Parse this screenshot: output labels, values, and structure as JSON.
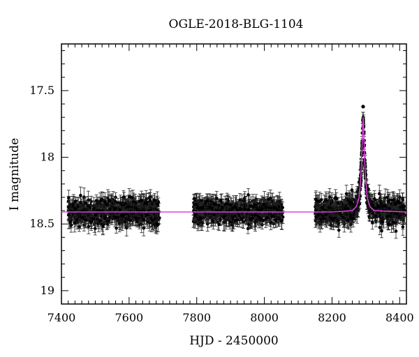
{
  "chart_data": {
    "type": "scatter",
    "title": "OGLE-2018-BLG-1104",
    "xlabel": "HJD - 2450000",
    "ylabel": "I magnitude",
    "xlim": [
      7400,
      8420
    ],
    "ylim": [
      19.1,
      17.15
    ],
    "y_inverted": true,
    "x_ticks": [
      7400,
      7600,
      7800,
      8000,
      8200,
      8400
    ],
    "x_tick_labels": [
      "7400",
      "7600",
      "7800",
      "8000",
      "8200",
      "8400"
    ],
    "y_ticks": [
      17.5,
      18,
      18.5,
      19
    ],
    "y_tick_labels": [
      "17.5",
      "18",
      "18.5",
      "19"
    ],
    "grid": false,
    "legend": "none",
    "baseline_mag": 18.41,
    "series": [
      {
        "kind": "observations with error bars",
        "color": "#000000",
        "seasons": [
          {
            "x_range": [
              7420,
              7690
            ],
            "median_mag": 18.41,
            "scatter_mag": 0.07,
            "typical_error": 0.05
          },
          {
            "x_range": [
              7790,
              8055
            ],
            "median_mag": 18.41,
            "scatter_mag": 0.06,
            "typical_error": 0.05
          },
          {
            "x_range": [
              8150,
              8415
            ],
            "median_mag": 18.41,
            "scatter_mag": 0.07,
            "typical_error": 0.05
          }
        ],
        "peak": {
          "x": 8292,
          "mag": 17.62
        }
      },
      {
        "kind": "model curve",
        "color": "#e040e0",
        "baseline_mag": 18.41,
        "peak_x": 8292,
        "peak_mag": 17.7,
        "points": [
          [
            7400,
            18.41
          ],
          [
            8200,
            18.41
          ],
          [
            8260,
            18.4
          ],
          [
            8272,
            18.37
          ],
          [
            8280,
            18.3
          ],
          [
            8285,
            18.16
          ],
          [
            8288,
            17.98
          ],
          [
            8290,
            17.82
          ],
          [
            8292,
            17.7
          ],
          [
            8294,
            17.82
          ],
          [
            8296,
            17.98
          ],
          [
            8299,
            18.16
          ],
          [
            8304,
            18.3
          ],
          [
            8312,
            18.37
          ],
          [
            8325,
            18.4
          ],
          [
            8420,
            18.41
          ]
        ]
      }
    ]
  }
}
